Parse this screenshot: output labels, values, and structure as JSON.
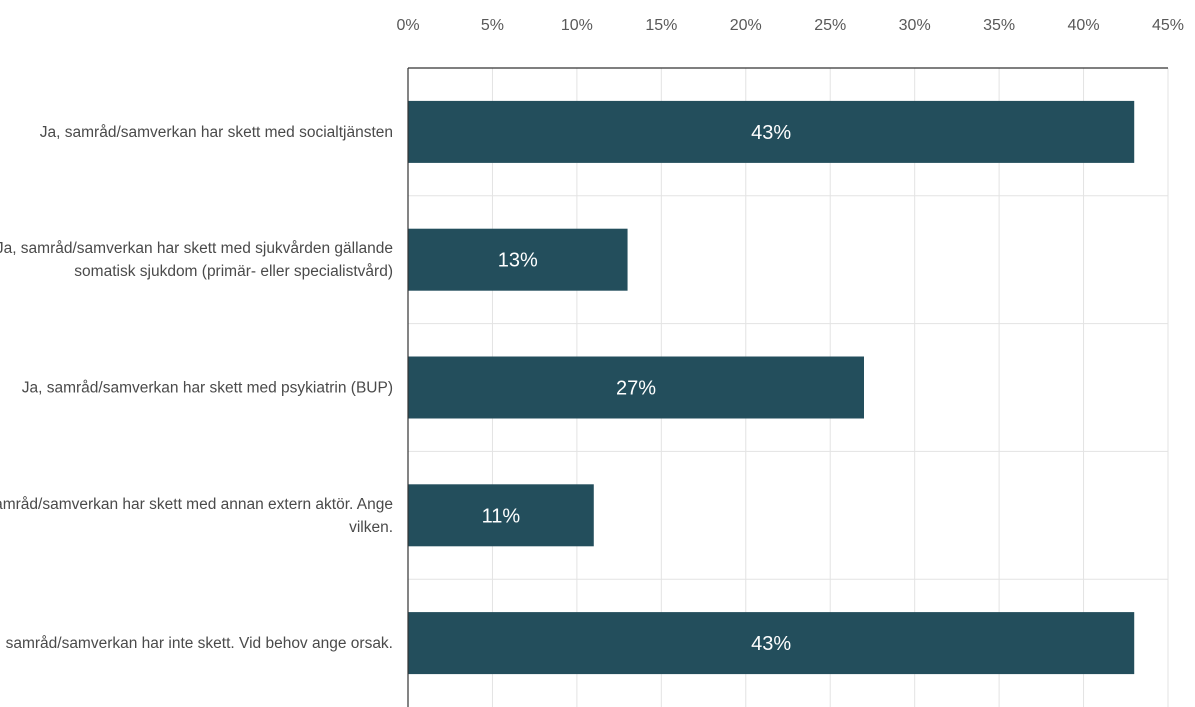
{
  "chart_data": {
    "type": "bar",
    "orientation": "horizontal",
    "categories": [
      "Ja, samråd/samverkan har skett med socialtjänsten",
      "Ja, samråd/samverkan har skett med sjukvården gällande somatisk sjukdom (primär- eller specialistvård)",
      "Ja, samråd/samverkan har skett med psykiatrin (BUP)",
      "Ja, samråd/samverkan har skett med annan extern aktör. Ange vilken.",
      "Nej, samråd/samverkan har inte skett. Vid behov ange orsak."
    ],
    "category_lines": [
      [
        "Ja, samråd/samverkan har skett med socialtjänsten"
      ],
      [
        "Ja, samråd/samverkan har skett med sjukvården gällande",
        "somatisk sjukdom (primär- eller specialistvård)"
      ],
      [
        "Ja, samråd/samverkan har skett med psykiatrin (BUP)"
      ],
      [
        "Ja, samråd/samverkan har skett med annan extern aktör. Ange",
        "vilken."
      ],
      [
        "Nej, samråd/samverkan har inte skett. Vid behov ange orsak."
      ]
    ],
    "values": [
      43,
      13,
      27,
      11,
      43
    ],
    "value_labels": [
      "43%",
      "13%",
      "27%",
      "11%",
      "43%"
    ],
    "x_ticks": [
      "0%",
      "5%",
      "10%",
      "15%",
      "20%",
      "25%",
      "30%",
      "35%",
      "40%",
      "45%"
    ],
    "xlim": [
      0,
      45
    ],
    "x_axis_position": "top",
    "grid": true,
    "bar_color": "#234e5c",
    "label_color": "#ffffff"
  }
}
